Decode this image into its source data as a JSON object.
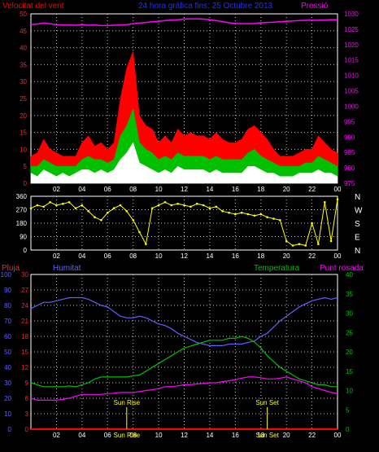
{
  "header": {
    "wind_label": "Velocitat del vent",
    "title": "24 hora gràfica fins: 25 Octubre 2013",
    "pressure_label": "Pressió"
  },
  "lower_header": {
    "rain_label": "Pluja",
    "humidity_label": "Humitat",
    "temperature_label": "Temperatura",
    "dewpoint_label": "Punt rosada"
  },
  "colors": {
    "wind_gust": "#ff0000",
    "wind_avg": "#00c000",
    "wind_min": "#ffffff",
    "pressure": "#ff00ff",
    "direction": "#ffff00",
    "humidity": "#6060ff",
    "temperature": "#00c000",
    "dewpoint": "#ff00ff",
    "rain": "#ff0000",
    "rain_axis": "#ff2020",
    "grid": "#c0c0c0",
    "sun_marker": "#ffff00"
  },
  "chart_data": [
    {
      "type": "area",
      "name": "wind-pressure",
      "x_ticks": [
        "02",
        "04",
        "06",
        "08",
        "10",
        "12",
        "14",
        "16",
        "18",
        "20",
        "22",
        "00"
      ],
      "y_left_ticks": [
        "0",
        "5",
        "10",
        "15",
        "20",
        "25",
        "30",
        "35",
        "40",
        "45",
        "50"
      ],
      "y_left_range": [
        0,
        50
      ],
      "y_right_ticks": [
        "975",
        "980",
        "985",
        "990",
        "995",
        "1000",
        "1005",
        "1010",
        "1015",
        "1020",
        "1025",
        "1030"
      ],
      "y_right_range": [
        975,
        1030
      ],
      "hours": [
        0,
        0.5,
        1,
        1.5,
        2,
        2.5,
        3,
        3.5,
        4,
        4.5,
        5,
        5.5,
        6,
        6.5,
        7,
        7.5,
        8,
        8.5,
        9,
        9.5,
        10,
        10.5,
        11,
        11.5,
        12,
        12.5,
        13,
        13.5,
        14,
        14.5,
        15,
        15.5,
        16,
        16.5,
        17,
        17.5,
        18,
        18.5,
        19,
        19.5,
        20,
        20.5,
        21,
        21.5,
        22,
        22.5,
        23,
        23.5,
        24
      ],
      "wind_gust": [
        8,
        9,
        13,
        10,
        9,
        8,
        8,
        8,
        12,
        14,
        11,
        12,
        10,
        12,
        25,
        34,
        39,
        20,
        17,
        16,
        12,
        14,
        12,
        16,
        14,
        15,
        14,
        14,
        13,
        15,
        13,
        12,
        12,
        13,
        16,
        17,
        15,
        13,
        10,
        8,
        8,
        8,
        9,
        10,
        10,
        14,
        12,
        10,
        9
      ],
      "wind_avg": [
        5,
        5,
        7,
        6,
        5,
        5,
        5,
        5,
        7,
        8,
        7,
        7,
        6,
        7,
        14,
        17,
        22,
        12,
        10,
        9,
        7,
        8,
        7,
        9,
        8,
        8,
        8,
        8,
        7,
        8,
        7,
        7,
        7,
        7,
        9,
        10,
        8,
        7,
        6,
        5,
        5,
        5,
        5,
        6,
        6,
        8,
        7,
        6,
        5
      ],
      "wind_min": [
        3,
        2,
        4,
        3,
        2,
        3,
        2,
        3,
        4,
        4,
        3,
        4,
        3,
        4,
        7,
        9,
        12,
        6,
        5,
        4,
        3,
        4,
        3,
        5,
        4,
        4,
        4,
        4,
        3,
        4,
        3,
        3,
        3,
        3,
        5,
        5,
        4,
        3,
        3,
        2,
        2,
        2,
        3,
        3,
        3,
        4,
        3,
        3,
        2
      ],
      "pressure": [
        1026.5,
        1026.7,
        1027,
        1026.8,
        1026.5,
        1026.4,
        1026.4,
        1026.3,
        1026.5,
        1026.3,
        1026.4,
        1026.2,
        1026.2,
        1026.3,
        1026.4,
        1026.5,
        1026.8,
        1027,
        1027.2,
        1027.4,
        1027.6,
        1027.8,
        1028,
        1028.1,
        1028.3,
        1028.4,
        1028.4,
        1028.3,
        1028.1,
        1027.8,
        1027.5,
        1027.1,
        1026.9,
        1026.8,
        1026.8,
        1026.9,
        1027.1,
        1027.2,
        1027.3,
        1027.4,
        1027.6,
        1027.7,
        1027.8,
        1027.9,
        1027.9,
        1027.9,
        1028,
        1028.1,
        1028.1
      ]
    },
    {
      "type": "line",
      "name": "wind-direction",
      "x_ticks": [
        "02",
        "04",
        "06",
        "08",
        "10",
        "12",
        "14",
        "16",
        "18",
        "20",
        "22",
        "00"
      ],
      "y_left_ticks": [
        "0",
        "90",
        "180",
        "270",
        "360"
      ],
      "y_right_ticks": [
        "N",
        "W",
        "S",
        "E",
        "N"
      ],
      "y_range": [
        0,
        360
      ],
      "hours": [
        0,
        0.5,
        1,
        1.5,
        2,
        2.5,
        3,
        3.5,
        4,
        4.5,
        5,
        5.5,
        6,
        6.5,
        7,
        7.5,
        8,
        8.5,
        9,
        9.5,
        10,
        10.5,
        11,
        11.5,
        12,
        12.5,
        13,
        13.5,
        14,
        14.5,
        15,
        15.5,
        16,
        16.5,
        17,
        17.5,
        18,
        18.5,
        19,
        19.5,
        20,
        20.5,
        21,
        21.5,
        22,
        22.5,
        23,
        23.5,
        24
      ],
      "direction": [
        280,
        300,
        290,
        320,
        300,
        310,
        320,
        280,
        300,
        260,
        220,
        200,
        250,
        280,
        300,
        260,
        200,
        120,
        40,
        280,
        300,
        320,
        300,
        310,
        300,
        290,
        310,
        300,
        280,
        290,
        260,
        250,
        240,
        250,
        240,
        230,
        240,
        220,
        210,
        200,
        60,
        30,
        40,
        30,
        180,
        40,
        320,
        60,
        340
      ]
    },
    {
      "type": "line",
      "name": "rain-humidity-temperature",
      "x_ticks": [
        "02",
        "04",
        "06",
        "08",
        "10",
        "12",
        "14",
        "16",
        "18",
        "20",
        "22",
        "00"
      ],
      "humidity_ticks": [
        "0",
        "10",
        "20",
        "30",
        "40",
        "50",
        "60",
        "70",
        "80",
        "90",
        "100"
      ],
      "humidity_range": [
        0,
        100
      ],
      "rain_ticks": [
        "0",
        "3",
        "6",
        "9",
        "12",
        "15",
        "18",
        "21",
        "24",
        "27",
        "30"
      ],
      "rain_range": [
        0,
        30
      ],
      "temp_ticks": [
        "0",
        "5",
        "10",
        "15",
        "20",
        "25",
        "30",
        "35",
        "40"
      ],
      "temp_range": [
        0,
        40
      ],
      "hours": [
        0,
        0.5,
        1,
        1.5,
        2,
        2.5,
        3,
        3.5,
        4,
        4.5,
        5,
        5.5,
        6,
        6.5,
        7,
        7.5,
        8,
        8.5,
        9,
        9.5,
        10,
        10.5,
        11,
        11.5,
        12,
        12.5,
        13,
        13.5,
        14,
        14.5,
        15,
        15.5,
        16,
        16.5,
        17,
        17.5,
        18,
        18.5,
        19,
        19.5,
        20,
        20.5,
        21,
        21.5,
        22,
        22.5,
        23,
        23.5,
        24
      ],
      "humidity": [
        78,
        80,
        82,
        82,
        83,
        84,
        85,
        85,
        85,
        84,
        82,
        80,
        79,
        76,
        73,
        72,
        72,
        73,
        72,
        70,
        68,
        67,
        65,
        62,
        60,
        58,
        56,
        55,
        54,
        54,
        54,
        55,
        55,
        55,
        56,
        57,
        60,
        62,
        66,
        70,
        73,
        76,
        79,
        81,
        83,
        84,
        85,
        84,
        85
      ],
      "temperature": [
        12,
        11.5,
        11,
        11,
        11,
        11,
        11.2,
        11,
        11.5,
        12,
        13,
        13.5,
        13.5,
        13.5,
        13.5,
        13.5,
        13.8,
        14,
        15,
        16,
        17,
        18,
        19,
        20,
        21,
        21.5,
        22,
        22.5,
        23,
        23,
        23,
        23.5,
        23.5,
        24,
        23.5,
        22.5,
        21,
        19,
        17.5,
        16,
        15,
        14,
        13,
        12.5,
        12,
        11.5,
        11.5,
        11,
        11
      ],
      "dewpoint": [
        8,
        7.5,
        7.5,
        7.5,
        7.5,
        7.7,
        8,
        8.5,
        9,
        9,
        9,
        9,
        9.2,
        9.3,
        9.5,
        9.5,
        9.5,
        9.7,
        10,
        10.2,
        10.5,
        11,
        11,
        11.2,
        11.5,
        11.5,
        11.7,
        11.8,
        12,
        12,
        12.3,
        12.5,
        12.8,
        13.2,
        13.5,
        13.5,
        13.3,
        13,
        13,
        13.2,
        13.5,
        13,
        12.5,
        12,
        11,
        10.5,
        10,
        9.5,
        9.2
      ],
      "rain": [
        0,
        0,
        0,
        0,
        0,
        0,
        0,
        0,
        0,
        0,
        0,
        0,
        0,
        0,
        0,
        0,
        0,
        0,
        0,
        0,
        0,
        0,
        0,
        0,
        0,
        0,
        0,
        0,
        0,
        0,
        0,
        0,
        0,
        0,
        0,
        0,
        0,
        0,
        0,
        0,
        0,
        0,
        0,
        0,
        0,
        0,
        0,
        0,
        0
      ],
      "sun_rise_label": "Sun Rise",
      "sun_set_label": "Sun Set",
      "sun_rise_hour": 7.5,
      "sun_set_hour": 18.5,
      "sun_rise_time_label": "Sun Rise",
      "sun_set_time_label": "Sun Set"
    }
  ]
}
